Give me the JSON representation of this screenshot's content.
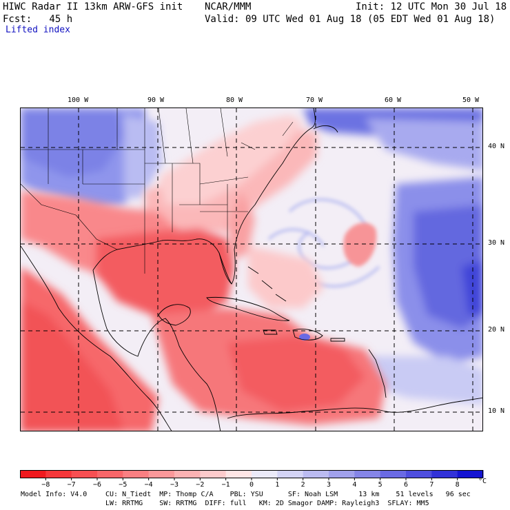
{
  "header": {
    "title": "HIWC Radar II 13km ARW-GFS init",
    "source": "NCAR/MMM",
    "init": "Init: 12 UTC Mon 30 Jul 18",
    "fcst": "Fcst:   45 h",
    "valid": "Valid: 09 UTC Wed 01 Aug 18 (05 EDT Wed 01 Aug 18)",
    "field": "Lifted index"
  },
  "map": {
    "lon_labels": [
      "100 W",
      "90 W",
      "80 W",
      "70 W",
      "60 W",
      "50 W"
    ],
    "lat_labels": [
      "40 N",
      "30 N",
      "20 N",
      "10 N"
    ]
  },
  "colorbar": {
    "unit": "°C",
    "ticks": [
      "−8",
      "−7",
      "−6",
      "−5",
      "−4",
      "−3",
      "−2",
      "−1",
      "0",
      "1",
      "2",
      "3",
      "4",
      "5",
      "6",
      "7",
      "8"
    ],
    "colors": [
      "#f0191e",
      "#f5373a",
      "#f74f52",
      "#f86669",
      "#fa7f82",
      "#fb989a",
      "#fcb2b3",
      "#fdcbcc",
      "#fee5e5",
      "#ebeaf8",
      "#d4d4f5",
      "#bbbbf1",
      "#a1a1ec",
      "#8585e7",
      "#6a6ae4",
      "#4e4ede",
      "#3232d8",
      "#1414d2"
    ]
  },
  "footer": {
    "line1_a": "Model Info: V4.0",
    "line1_b": "CU: N_Tiedt  MP: Thomp C/A    PBL: YSU      SF: Noah LSM     13 km    51 levels   96 sec",
    "line2": "LW: RRTMG    SW: RRTMG  DIFF: full   KM: 2D Smagor DAMP: Rayleigh3  SFLAY: MM5"
  }
}
